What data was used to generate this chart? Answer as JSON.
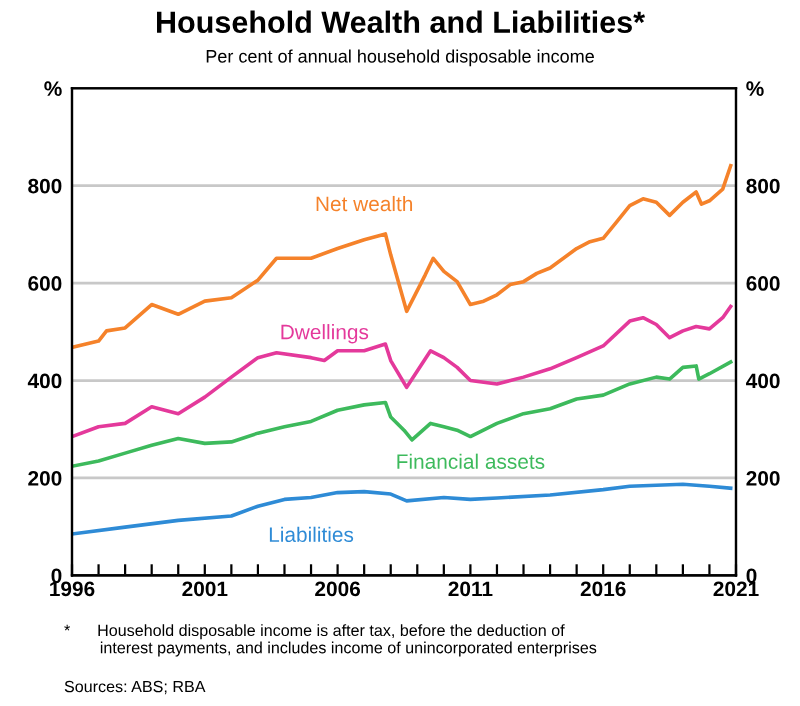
{
  "chart_data": {
    "type": "line",
    "title": "Household Wealth and Liabilities*",
    "subtitle": "Per cent of annual household disposable income",
    "annotations": [
      "*      Household disposable income is after tax, before the deduction of\n        interest payments, and includes income of unincorporated enterprises",
      "Sources: ABS; RBA"
    ],
    "xlim": [
      1996,
      2021
    ],
    "xticks": [
      1996,
      {
        "value": 1997,
        "label": null
      },
      {
        "value": 1998,
        "label": null
      },
      {
        "value": 1999,
        "label": null
      },
      {
        "value": 2000,
        "label": null
      },
      2001,
      {
        "value": 2002,
        "label": null
      },
      {
        "value": 2003,
        "label": null
      },
      {
        "value": 2004,
        "label": null
      },
      {
        "value": 2005,
        "label": null
      },
      2006,
      {
        "value": 2007,
        "label": null
      },
      {
        "value": 2008,
        "label": null
      },
      {
        "value": 2009,
        "label": null
      },
      {
        "value": 2010,
        "label": null
      },
      2011,
      {
        "value": 2012,
        "label": null
      },
      {
        "value": 2013,
        "label": null
      },
      {
        "value": 2014,
        "label": null
      },
      {
        "value": 2015,
        "label": null
      },
      2016,
      {
        "value": 2017,
        "label": null
      },
      {
        "value": 2018,
        "label": null
      },
      {
        "value": 2019,
        "label": null
      },
      {
        "value": 2020,
        "label": null
      },
      2021
    ],
    "ylim": [
      0,
      1000
    ],
    "yticks": [
      0,
      200,
      400,
      600,
      800,
      {
        "value": 1000,
        "label": "%"
      }
    ],
    "y2lim": [
      0,
      1000
    ],
    "y2ticks": [
      0,
      200,
      400,
      600,
      800,
      {
        "value": 1000,
        "label": "%"
      }
    ],
    "grid": "y",
    "legend": false,
    "series": [
      {
        "name": "Net wealth",
        "color": "#f5822a",
        "x": [
          1996,
          1997,
          1997.3,
          1998,
          1999,
          2000,
          2001,
          2002,
          2003,
          2003.7,
          2005,
          2006,
          2007,
          2007.8,
          2008,
          2008.6,
          2009.3,
          2009.6,
          2010,
          2010.5,
          2011,
          2011.5,
          2012,
          2012.5,
          2013,
          2013.5,
          2014,
          2015,
          2015.5,
          2016,
          2016.5,
          2017,
          2017.5,
          2018,
          2018.5,
          2019,
          2019.5,
          2019.7,
          2020,
          2020.5,
          2020.8
        ],
        "values": [
          468,
          481,
          502,
          508,
          556,
          536,
          563,
          570,
          606,
          651,
          651,
          671,
          689,
          701,
          658,
          542,
          617,
          651,
          624,
          603,
          556,
          563,
          576,
          597,
          603,
          620,
          631,
          671,
          685,
          692,
          725,
          759,
          773,
          766,
          739,
          766,
          787,
          762,
          769,
          793,
          841
        ]
      },
      {
        "name": "Dwellings",
        "color": "#e4399b",
        "x": [
          1996,
          1997,
          1998,
          1999,
          2000,
          2001,
          2002,
          2003,
          2003.7,
          2005,
          2005.5,
          2006,
          2007,
          2007.8,
          2008,
          2008.6,
          2009.5,
          2010,
          2010.5,
          2011,
          2012,
          2013,
          2014,
          2015,
          2016,
          2017,
          2017.5,
          2018,
          2018.5,
          2019,
          2019.5,
          2020,
          2020.5,
          2020.8
        ],
        "values": [
          285,
          305,
          312,
          346,
          332,
          366,
          407,
          447,
          457,
          447,
          441,
          461,
          461,
          475,
          441,
          386,
          461,
          447,
          427,
          400,
          393,
          407,
          424,
          447,
          471,
          522,
          529,
          515,
          488,
          502,
          511,
          506,
          529,
          552
        ]
      },
      {
        "name": "Financial assets",
        "color": "#3dba5c",
        "x": [
          1996,
          1997,
          1998,
          1999,
          2000,
          2001,
          2002,
          2003,
          2004,
          2005,
          2006,
          2007,
          2007.8,
          2008,
          2008.5,
          2008.8,
          2009.5,
          2010,
          2010.5,
          2011,
          2012,
          2013,
          2014,
          2015,
          2016,
          2017,
          2018,
          2018.5,
          2019,
          2019.5,
          2019.6,
          2020,
          2020.8
        ],
        "values": [
          224,
          235,
          251,
          267,
          281,
          271,
          274,
          292,
          305,
          316,
          339,
          350,
          355,
          325,
          298,
          278,
          312,
          305,
          298,
          285,
          312,
          332,
          342,
          362,
          370,
          393,
          407,
          403,
          427,
          430,
          403,
          414,
          438
        ]
      },
      {
        "name": "Liabilities",
        "color": "#2e8bd6",
        "x": [
          1996,
          1998,
          2000,
          2002,
          2003,
          2004,
          2005,
          2006,
          2007,
          2008,
          2008.6,
          2010,
          2011,
          2012,
          2014,
          2016,
          2017,
          2019,
          2020,
          2020.8
        ],
        "values": [
          85,
          99,
          113,
          122,
          142,
          156,
          160,
          170,
          172,
          167,
          153,
          160,
          156,
          159,
          165,
          176,
          183,
          187,
          183,
          179
        ]
      }
    ]
  }
}
